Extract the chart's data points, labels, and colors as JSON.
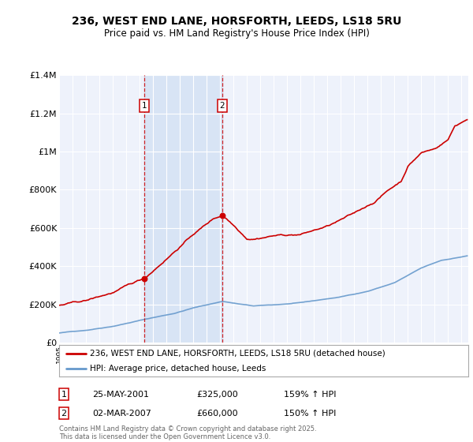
{
  "title_line1": "236, WEST END LANE, HORSFORTH, LEEDS, LS18 5RU",
  "title_line2": "Price paid vs. HM Land Registry's House Price Index (HPI)",
  "ylim": [
    0,
    1400000
  ],
  "yticks": [
    0,
    200000,
    400000,
    600000,
    800000,
    1000000,
    1200000,
    1400000
  ],
  "ytick_labels": [
    "£0",
    "£200K",
    "£400K",
    "£600K",
    "£800K",
    "£1M",
    "£1.2M",
    "£1.4M"
  ],
  "hpi_color": "#6699cc",
  "price_color": "#cc0000",
  "sale1_price": 325000,
  "sale1_label": "25-MAY-2001",
  "sale1_value": "£325,000",
  "sale1_hpi": "159% ↑ HPI",
  "sale1_year": 2001,
  "sale1_month": 5,
  "sale2_price": 660000,
  "sale2_label": "02-MAR-2007",
  "sale2_value": "£660,000",
  "sale2_hpi": "150% ↑ HPI",
  "sale2_year": 2007,
  "sale2_month": 3,
  "legend_line1": "236, WEST END LANE, HORSFORTH, LEEDS, LS18 5RU (detached house)",
  "legend_line2": "HPI: Average price, detached house, Leeds",
  "footer": "Contains HM Land Registry data © Crown copyright and database right 2025.\nThis data is licensed under the Open Government Licence v3.0.",
  "background_color": "#ffffff",
  "plot_bg_color": "#eef2fb",
  "shade_color": "#d8e4f5",
  "grid_color": "#ffffff",
  "xlim_start": 1995.0,
  "xlim_end": 2025.5
}
